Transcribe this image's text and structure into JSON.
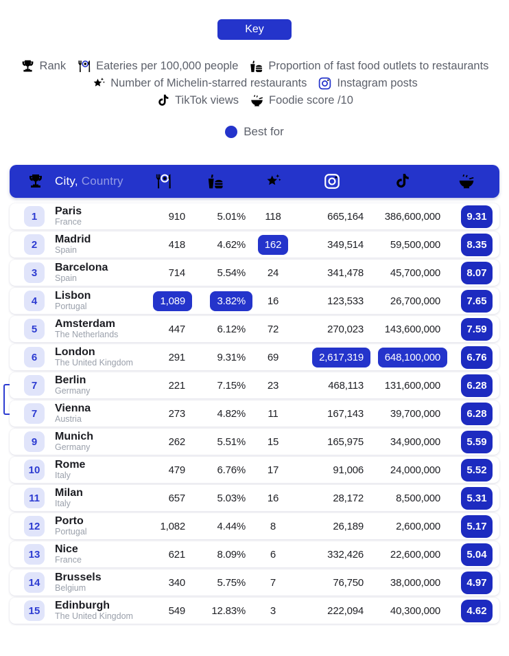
{
  "key_label": "Key",
  "legend": {
    "lines": [
      [
        {
          "icon": "trophy-icon",
          "label": "Rank"
        },
        {
          "icon": "eateries-icon",
          "label": "Eateries per 100,000 people"
        },
        {
          "icon": "fast-food-icon",
          "label": "Proportion of fast food outlets to restaurants"
        }
      ],
      [
        {
          "icon": "michelin-star-icon",
          "label": "Number of Michelin-starred restaurants"
        },
        {
          "icon": "instagram-icon",
          "label": "Instagram posts"
        }
      ],
      [
        {
          "icon": "tiktok-icon",
          "label": "TikTok views"
        },
        {
          "icon": "foodie-score-icon",
          "label": "Foodie score /10"
        }
      ]
    ],
    "best_for_label": "Best for"
  },
  "table_header": {
    "city_label": "City,",
    "country_label": "Country"
  },
  "colors": {
    "accent_blue": "#2434cb",
    "score_badge_blue": "#1d2bc0",
    "rank_badge_bg": "#e0e4fa",
    "legend_text": "#5d616b",
    "country_text": "#9aa0ab"
  },
  "chart_data": {
    "type": "table",
    "columns": [
      {
        "key": "rank",
        "label": "Rank",
        "icon": "trophy-icon"
      },
      {
        "key": "city",
        "label": "City, Country",
        "icon": null
      },
      {
        "key": "eateries",
        "label": "Eateries per 100,000 people",
        "icon": "eateries-icon"
      },
      {
        "key": "fastfood",
        "label": "Proportion of fast food outlets to restaurants",
        "icon": "fast-food-icon"
      },
      {
        "key": "michelin",
        "label": "Number of Michelin-starred restaurants",
        "icon": "michelin-star-icon"
      },
      {
        "key": "instagram",
        "label": "Instagram posts",
        "icon": "instagram-icon"
      },
      {
        "key": "tiktok",
        "label": "TikTok views",
        "icon": "tiktok-icon"
      },
      {
        "key": "score",
        "label": "Foodie score /10",
        "icon": "foodie-score-icon"
      }
    ],
    "best_for_highlight_meaning": "Blue-filled cells mark the city that is best for that metric",
    "rows": [
      {
        "rank": "1",
        "city": "Paris",
        "country": "France",
        "eateries": "910",
        "fastfood": "5.01%",
        "michelin": "118",
        "instagram": "665,164",
        "tiktok": "386,600,000",
        "score": "9.31",
        "best": [],
        "tie": false
      },
      {
        "rank": "2",
        "city": "Madrid",
        "country": "Spain",
        "eateries": "418",
        "fastfood": "4.62%",
        "michelin": "162",
        "instagram": "349,514",
        "tiktok": "59,500,000",
        "score": "8.35",
        "best": [
          "michelin"
        ],
        "tie": false
      },
      {
        "rank": "3",
        "city": "Barcelona",
        "country": "Spain",
        "eateries": "714",
        "fastfood": "5.54%",
        "michelin": "24",
        "instagram": "341,478",
        "tiktok": "45,700,000",
        "score": "8.07",
        "best": [],
        "tie": false
      },
      {
        "rank": "4",
        "city": "Lisbon",
        "country": "Portugal",
        "eateries": "1,089",
        "fastfood": "3.82%",
        "michelin": "16",
        "instagram": "123,533",
        "tiktok": "26,700,000",
        "score": "7.65",
        "best": [
          "eateries",
          "fastfood"
        ],
        "tie": false
      },
      {
        "rank": "5",
        "city": "Amsterdam",
        "country": "The Netherlands",
        "eateries": "447",
        "fastfood": "6.12%",
        "michelin": "72",
        "instagram": "270,023",
        "tiktok": "143,600,000",
        "score": "7.59",
        "best": [],
        "tie": false
      },
      {
        "rank": "6",
        "city": "London",
        "country": "The United Kingdom",
        "eateries": "291",
        "fastfood": "9.31%",
        "michelin": "69",
        "instagram": "2,617,319",
        "tiktok": "648,100,000",
        "score": "6.76",
        "best": [
          "instagram",
          "tiktok"
        ],
        "tie": false
      },
      {
        "rank": "7",
        "city": "Berlin",
        "country": "Germany",
        "eateries": "221",
        "fastfood": "7.15%",
        "michelin": "23",
        "instagram": "468,113",
        "tiktok": "131,600,000",
        "score": "6.28",
        "best": [],
        "tie": true
      },
      {
        "rank": "7",
        "city": "Vienna",
        "country": "Austria",
        "eateries": "273",
        "fastfood": "4.82%",
        "michelin": "11",
        "instagram": "167,143",
        "tiktok": "39,700,000",
        "score": "6.28",
        "best": [],
        "tie": true
      },
      {
        "rank": "9",
        "city": "Munich",
        "country": "Germany",
        "eateries": "262",
        "fastfood": "5.51%",
        "michelin": "15",
        "instagram": "165,975",
        "tiktok": "34,900,000",
        "score": "5.59",
        "best": [],
        "tie": false
      },
      {
        "rank": "10",
        "city": "Rome",
        "country": "Italy",
        "eateries": "479",
        "fastfood": "6.76%",
        "michelin": "17",
        "instagram": "91,006",
        "tiktok": "24,000,000",
        "score": "5.52",
        "best": [],
        "tie": false
      },
      {
        "rank": "11",
        "city": "Milan",
        "country": "Italy",
        "eateries": "657",
        "fastfood": "5.03%",
        "michelin": "16",
        "instagram": "28,172",
        "tiktok": "8,500,000",
        "score": "5.31",
        "best": [],
        "tie": false
      },
      {
        "rank": "12",
        "city": "Porto",
        "country": "Portugal",
        "eateries": "1,082",
        "fastfood": "4.44%",
        "michelin": "8",
        "instagram": "26,189",
        "tiktok": "2,600,000",
        "score": "5.17",
        "best": [],
        "tie": false
      },
      {
        "rank": "13",
        "city": "Nice",
        "country": "France",
        "eateries": "621",
        "fastfood": "8.09%",
        "michelin": "6",
        "instagram": "332,426",
        "tiktok": "22,600,000",
        "score": "5.04",
        "best": [],
        "tie": false
      },
      {
        "rank": "14",
        "city": "Brussels",
        "country": "Belgium",
        "eateries": "340",
        "fastfood": "5.75%",
        "michelin": "7",
        "instagram": "76,750",
        "tiktok": "38,000,000",
        "score": "4.97",
        "best": [],
        "tie": false
      },
      {
        "rank": "15",
        "city": "Edinburgh",
        "country": "The United Kingdom",
        "eateries": "549",
        "fastfood": "12.83%",
        "michelin": "3",
        "instagram": "222,094",
        "tiktok": "40,300,000",
        "score": "4.62",
        "best": [],
        "tie": false
      }
    ]
  }
}
